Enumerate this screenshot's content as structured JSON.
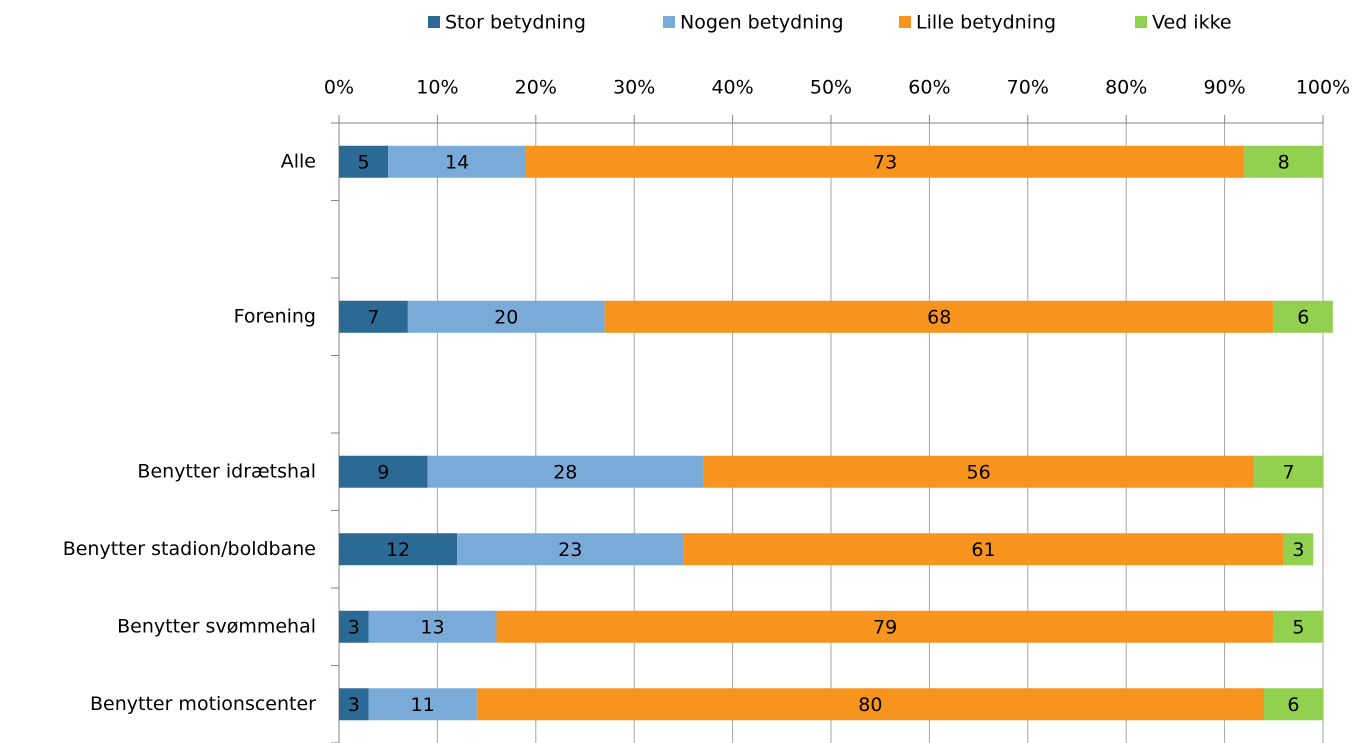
{
  "chart_data": {
    "type": "stacked_barh",
    "categories": [
      "Alle",
      null,
      "Forening",
      null,
      "Benytter idrætshal",
      "Benytter stadion/boldbane",
      "Benytter svømmehal",
      "Benytter motionscenter"
    ],
    "series": [
      {
        "name": "Stor betydning",
        "color": "#2b6a94",
        "values": [
          5,
          null,
          7,
          null,
          9,
          12,
          3,
          3
        ]
      },
      {
        "name": "Nogen betydning",
        "color": "#7aaad8",
        "values": [
          14,
          null,
          20,
          null,
          28,
          23,
          13,
          11
        ]
      },
      {
        "name": "Lille betydning",
        "color": "#f7941d",
        "values": [
          73,
          null,
          68,
          null,
          56,
          61,
          79,
          80
        ]
      },
      {
        "name": "Ved ikke",
        "color": "#92d050",
        "values": [
          8,
          null,
          6,
          null,
          7,
          3,
          5,
          6
        ]
      }
    ],
    "xlim": [
      0,
      100
    ],
    "xticks": [
      {
        "value": 0,
        "label": "0%"
      },
      {
        "value": 10,
        "label": "10%"
      },
      {
        "value": 20,
        "label": "20%"
      },
      {
        "value": 30,
        "label": "30%"
      },
      {
        "value": 40,
        "label": "40%"
      },
      {
        "value": 50,
        "label": "50%"
      },
      {
        "value": 60,
        "label": "60%"
      },
      {
        "value": 70,
        "label": "70%"
      },
      {
        "value": 80,
        "label": "80%"
      },
      {
        "value": 90,
        "label": "90%"
      },
      {
        "value": 100,
        "label": "100%"
      }
    ],
    "grid": true,
    "legend": "top"
  }
}
